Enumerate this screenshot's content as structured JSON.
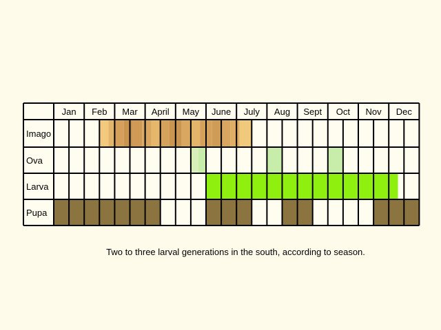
{
  "months": [
    "Jan",
    "Feb",
    "Mar",
    "April",
    "May",
    "June",
    "July",
    "Aug",
    "Sept",
    "Oct",
    "Nov",
    "Dec"
  ],
  "rows": [
    {
      "label": "Imago",
      "segments": [
        {
          "from": 3.0,
          "to": 3.6,
          "color": "#f2c97d"
        },
        {
          "from": 3.6,
          "to": 4.0,
          "color": "#e3b56a"
        },
        {
          "from": 4.0,
          "to": 4.6,
          "color": "#d4a05a"
        },
        {
          "from": 4.6,
          "to": 5.2,
          "color": "#c9944f"
        },
        {
          "from": 5.2,
          "to": 5.8,
          "color": "#d09a56"
        },
        {
          "from": 5.8,
          "to": 6.4,
          "color": "#d9a760"
        },
        {
          "from": 6.4,
          "to": 7.0,
          "color": "#e4b76a"
        },
        {
          "from": 7.0,
          "to": 7.6,
          "color": "#d5a25c"
        },
        {
          "from": 7.6,
          "to": 8.4,
          "color": "#ca9550"
        },
        {
          "from": 8.4,
          "to": 9.0,
          "color": "#d9a760"
        },
        {
          "from": 9.0,
          "to": 9.6,
          "color": "#e3b56a"
        },
        {
          "from": 9.6,
          "to": 10.4,
          "color": "#d4a05a"
        },
        {
          "from": 10.4,
          "to": 11.0,
          "color": "#cf9c57"
        },
        {
          "from": 11.0,
          "to": 11.6,
          "color": "#d8a660"
        },
        {
          "from": 11.6,
          "to": 12.2,
          "color": "#e0ad65"
        },
        {
          "from": 12.2,
          "to": 13.0,
          "color": "#f0c97d"
        }
      ]
    },
    {
      "label": "Ova",
      "segments": [
        {
          "from": 9.0,
          "to": 9.5,
          "color": "#d8f0b8"
        },
        {
          "from": 9.5,
          "to": 10.0,
          "color": "#c8ecaa"
        },
        {
          "from": 14.0,
          "to": 15.0,
          "color": "#c8ecaa"
        },
        {
          "from": 18.0,
          "to": 19.0,
          "color": "#c8ecaa"
        }
      ]
    },
    {
      "label": "Larva",
      "segments": [
        {
          "from": 10.0,
          "to": 22.6,
          "color": "#8fef0e"
        }
      ]
    },
    {
      "label": "Pupa",
      "segments": [
        {
          "from": 0.0,
          "to": 7.0,
          "color": "#8b7440"
        },
        {
          "from": 10.0,
          "to": 13.0,
          "color": "#8b7440"
        },
        {
          "from": 15.0,
          "to": 17.0,
          "color": "#8b7440"
        },
        {
          "from": 21.0,
          "to": 24.0,
          "color": "#8b7440"
        }
      ]
    }
  ],
  "caption": "Two to three larval generations in the south, according to season."
}
